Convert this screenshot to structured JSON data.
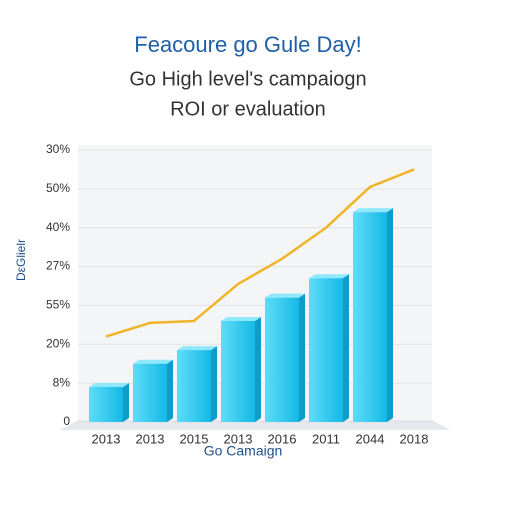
{
  "chart_data": {
    "type": "bar",
    "title": "Feacoure go Gule Day!",
    "subtitle": [
      "Go High level's campaiogn",
      "ROI or evaluation"
    ],
    "x_label": "Go Camaign",
    "y_label": "DεGlielr",
    "categories": [
      "2013",
      "2013",
      "2015",
      "2013",
      "2016",
      "2011",
      "2044",
      "2018"
    ],
    "series": [
      {
        "type": "bar",
        "color": "#22c6ee",
        "values": [
          0.9,
          1.5,
          1.85,
          2.6,
          3.2,
          3.7,
          5.4,
          null
        ]
      },
      {
        "type": "line",
        "color": "#f0b429",
        "values": [
          2.2,
          2.55,
          2.6,
          3.55,
          4.2,
          5.0,
          6.05,
          6.5
        ]
      }
    ],
    "ylim": [
      0,
      7
    ],
    "yticks": [
      {
        "value": 0,
        "label": "0"
      },
      {
        "value": 1,
        "label": "8%"
      },
      {
        "value": 2,
        "label": "20%"
      },
      {
        "value": 3,
        "label": "55%"
      },
      {
        "value": 4,
        "label": "27%"
      },
      {
        "value": 5,
        "label": "40%"
      },
      {
        "value": 6,
        "label": "50%"
      },
      {
        "value": 7,
        "label": "30%"
      }
    ],
    "grid": true
  }
}
